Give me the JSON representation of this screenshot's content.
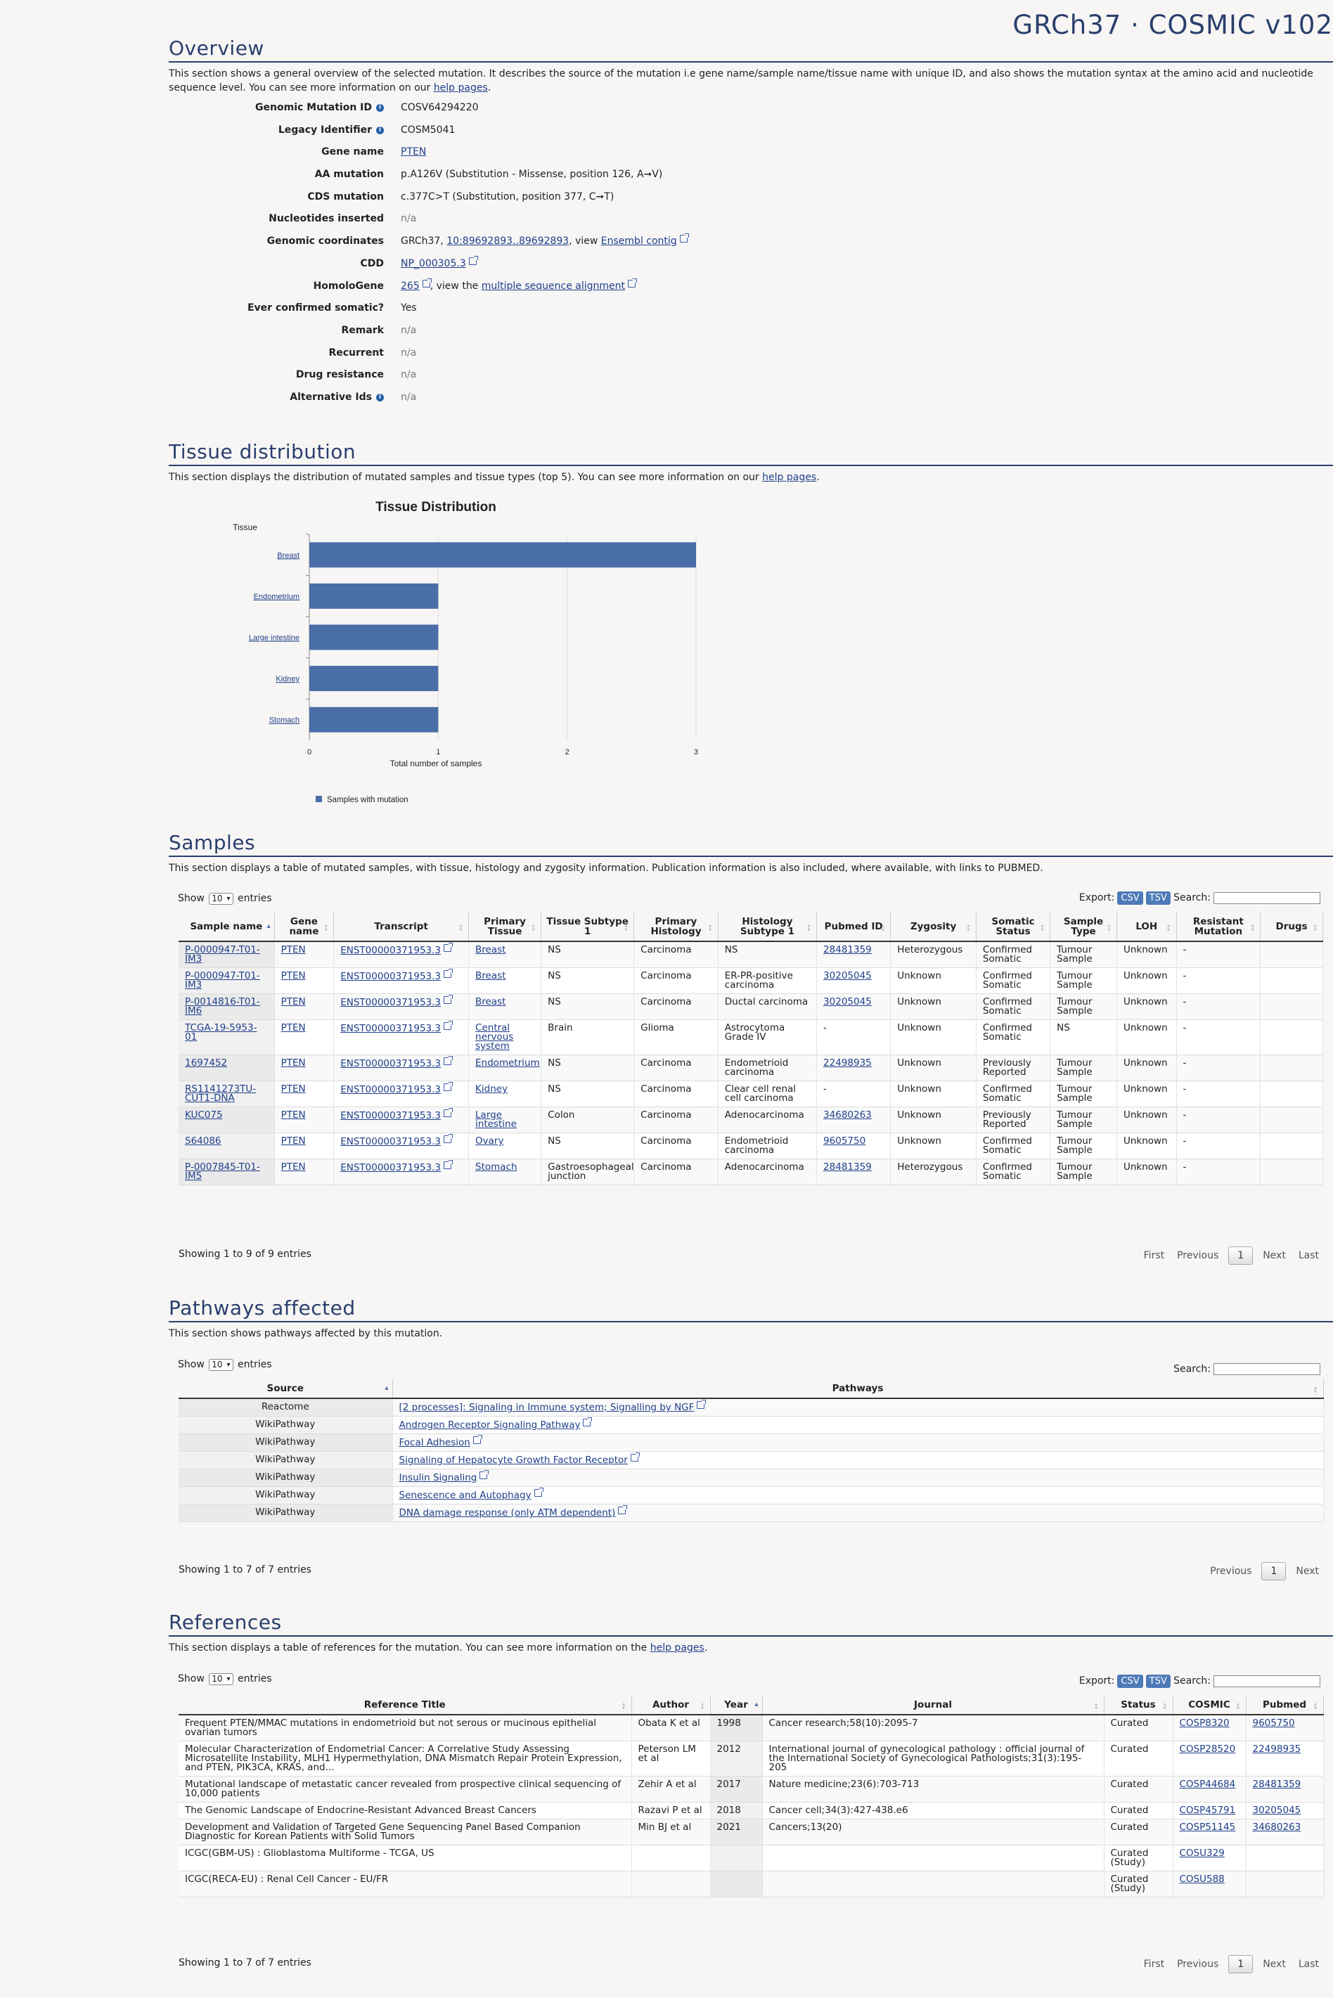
{
  "header": {
    "title": "GRCh37 · COSMIC v102"
  },
  "overview": {
    "heading": "Overview",
    "desc_a": "This section shows a general overview of the selected mutation. It describes the source of the mutation i.e gene name/sample name/tissue name with unique ID, and also shows the mutation syntax at the amino acid and nucleotide sequence level. You can see more information on our ",
    "desc_link": "help pages",
    "desc_b": ".",
    "rows": {
      "gmid": {
        "label": "Genomic Mutation ID",
        "value": "COSV64294220"
      },
      "legacy": {
        "label": "Legacy Identifier",
        "value": "COSM5041"
      },
      "gene": {
        "label": "Gene name",
        "value": "PTEN"
      },
      "aa": {
        "label": "AA mutation",
        "value": "p.A126V (Substitution - Missense, position 126, A➞V)"
      },
      "cds": {
        "label": "CDS mutation",
        "value": "c.377C>T (Substitution, position 377, C➞T)"
      },
      "nuc": {
        "label": "Nucleotides inserted",
        "value": "n/a"
      },
      "coord": {
        "label": "Genomic coordinates",
        "prefix": "GRCh37, ",
        "link": "10:89692893..89692893",
        "mid": ", view ",
        "link2": "Ensembl contig"
      },
      "cdd": {
        "label": "CDD",
        "link": "NP_000305.3"
      },
      "homolo": {
        "label": "HomoloGene",
        "link": "265",
        "mid": ", view the ",
        "link2": "multiple sequence alignment"
      },
      "ever": {
        "label": "Ever confirmed somatic?",
        "value": "Yes"
      },
      "remark": {
        "label": "Remark",
        "value": "n/a"
      },
      "recurrent": {
        "label": "Recurrent",
        "value": "n/a"
      },
      "drug": {
        "label": "Drug resistance",
        "value": "n/a"
      },
      "alt": {
        "label": "Alternative Ids",
        "value": "n/a"
      }
    }
  },
  "tissue": {
    "heading": "Tissue distribution",
    "desc_a": "This section displays the distribution of mutated samples and tissue types (top 5). You can see more information on our ",
    "desc_link": "help pages",
    "desc_b": "."
  },
  "chart_data": {
    "type": "bar",
    "orientation": "horizontal",
    "title": "Tissue Distribution",
    "ylabel": "Tissue",
    "xlabel": "Total number of samples",
    "categories": [
      "Breast",
      "Endometrium",
      "Large intestine",
      "Kidney",
      "Stomach"
    ],
    "values": [
      3,
      1,
      1,
      1,
      1
    ],
    "xlim": [
      0,
      3
    ],
    "xticks": [
      "0",
      "1",
      "2",
      "3"
    ],
    "legend": "Samples with mutation",
    "legend_position": "bottom-left",
    "color": "#4a6ea8",
    "grid": true
  },
  "samples": {
    "heading": "Samples",
    "desc": "This section displays a table of mutated samples, with tissue, histology and zygosity information. Publication information is also included, where available, with links to PUBMED.",
    "show": "Show",
    "show_val": "10",
    "entries": "entries",
    "export": "Export:",
    "csv": "CSV",
    "tsv": "TSV",
    "search": "Search:",
    "columns": [
      "Sample name",
      "Gene name",
      "Transcript",
      "Primary Tissue",
      "Tissue Subtype 1",
      "Primary Histology",
      "Histology Subtype 1",
      "Pubmed ID",
      "Zygosity",
      "Somatic Status",
      "Sample Type",
      "LOH",
      "Resistant Mutation",
      "Drugs"
    ],
    "rows": [
      [
        "P-0000947-T01-IM3",
        "PTEN",
        "ENST00000371953.3",
        "Breast",
        "NS",
        "Carcinoma",
        "NS",
        "28481359",
        "Heterozygous",
        "Confirmed Somatic",
        "Tumour Sample",
        "Unknown",
        "-",
        ""
      ],
      [
        "P-0000947-T01-IM3",
        "PTEN",
        "ENST00000371953.3",
        "Breast",
        "NS",
        "Carcinoma",
        "ER-PR-positive carcinoma",
        "30205045",
        "Unknown",
        "Confirmed Somatic",
        "Tumour Sample",
        "Unknown",
        "-",
        ""
      ],
      [
        "P-0014816-T01-IM6",
        "PTEN",
        "ENST00000371953.3",
        "Breast",
        "NS",
        "Carcinoma",
        "Ductal carcinoma",
        "30205045",
        "Unknown",
        "Confirmed Somatic",
        "Tumour Sample",
        "Unknown",
        "-",
        ""
      ],
      [
        "TCGA-19-5953-01",
        "PTEN",
        "ENST00000371953.3",
        "Central nervous system",
        "Brain",
        "Glioma",
        "Astrocytoma Grade IV",
        "-",
        "Unknown",
        "Confirmed Somatic",
        "NS",
        "Unknown",
        "-",
        ""
      ],
      [
        "1697452",
        "PTEN",
        "ENST00000371953.3",
        "Endometrium",
        "NS",
        "Carcinoma",
        "Endometrioid carcinoma",
        "22498935",
        "Unknown",
        "Previously Reported",
        "Tumour Sample",
        "Unknown",
        "-",
        ""
      ],
      [
        "RS1141273TU-CUT1-DNA",
        "PTEN",
        "ENST00000371953.3",
        "Kidney",
        "NS",
        "Carcinoma",
        "Clear cell renal cell carcinoma",
        "-",
        "Unknown",
        "Confirmed Somatic",
        "Tumour Sample",
        "Unknown",
        "-",
        ""
      ],
      [
        "KUC075",
        "PTEN",
        "ENST00000371953.3",
        "Large intestine",
        "Colon",
        "Carcinoma",
        "Adenocarcinoma",
        "34680263",
        "Unknown",
        "Previously Reported",
        "Tumour Sample",
        "Unknown",
        "-",
        ""
      ],
      [
        "S64086",
        "PTEN",
        "ENST00000371953.3",
        "Ovary",
        "NS",
        "Carcinoma",
        "Endometrioid carcinoma",
        "9605750",
        "Unknown",
        "Confirmed Somatic",
        "Tumour Sample",
        "Unknown",
        "-",
        ""
      ],
      [
        "P-0007845-T01-IM5",
        "PTEN",
        "ENST00000371953.3",
        "Stomach",
        "Gastroesophageal junction",
        "Carcinoma",
        "Adenocarcinoma",
        "28481359",
        "Heterozygous",
        "Confirmed Somatic",
        "Tumour Sample",
        "Unknown",
        "-",
        ""
      ]
    ],
    "info": "Showing 1 to 9 of 9 entries",
    "pager": {
      "first": "First",
      "prev": "Previous",
      "page": "1",
      "next": "Next",
      "last": "Last"
    }
  },
  "pathways": {
    "heading": "Pathways affected",
    "desc": "This section shows pathways affected by this mutation.",
    "show": "Show",
    "show_val": "10",
    "entries": "entries",
    "search": "Search:",
    "columns": [
      "Source",
      "Pathways"
    ],
    "rows": [
      [
        "Reactome",
        "[2 processes]: Signaling in Immune system; Signalling by NGF"
      ],
      [
        "WikiPathway",
        "Androgen Receptor Signaling Pathway"
      ],
      [
        "WikiPathway",
        "Focal Adhesion"
      ],
      [
        "WikiPathway",
        "Signaling of Hepatocyte Growth Factor Receptor"
      ],
      [
        "WikiPathway",
        "Insulin Signaling"
      ],
      [
        "WikiPathway",
        "Senescence and Autophagy"
      ],
      [
        "WikiPathway",
        "DNA damage response (only ATM dependent)"
      ]
    ],
    "info": "Showing 1 to 7 of 7 entries",
    "pager": {
      "prev": "Previous",
      "page": "1",
      "next": "Next"
    }
  },
  "references": {
    "heading": "References",
    "desc_a": "This section displays a table of references for the mutation. You can see more information on the ",
    "desc_link": "help pages",
    "desc_b": ".",
    "show": "Show",
    "show_val": "10",
    "entries": "entries",
    "export": "Export:",
    "csv": "CSV",
    "tsv": "TSV",
    "search": "Search:",
    "columns": [
      "Reference Title",
      "Author",
      "Year",
      "Journal",
      "Status",
      "COSMIC",
      "Pubmed"
    ],
    "rows": [
      [
        "Frequent PTEN/MMAC mutations in endometrioid but not serous or mucinous epithelial ovarian tumors",
        "Obata K et al",
        "1998",
        "Cancer research;58(10):2095-7",
        "Curated",
        "COSP8320",
        "9605750"
      ],
      [
        "Molecular Characterization of Endometrial Cancer: A Correlative Study Assessing Microsatellite Instability, MLH1 Hypermethylation, DNA Mismatch Repair Protein Expression, and PTEN, PIK3CA, KRAS, and...",
        "Peterson LM et al",
        "2012",
        "International journal of gynecological pathology : official journal of the International Society of Gynecological Pathologists;31(3):195-205",
        "Curated",
        "COSP28520",
        "22498935"
      ],
      [
        "Mutational landscape of metastatic cancer revealed from prospective clinical sequencing of 10,000 patients",
        "Zehir A et al",
        "2017",
        "Nature medicine;23(6):703-713",
        "Curated",
        "COSP44684",
        "28481359"
      ],
      [
        "The Genomic Landscape of Endocrine-Resistant Advanced Breast Cancers",
        "Razavi P et al",
        "2018",
        "Cancer cell;34(3):427-438.e6",
        "Curated",
        "COSP45791",
        "30205045"
      ],
      [
        "Development and Validation of Targeted Gene Sequencing Panel Based Companion Diagnostic for Korean Patients with Solid Tumors",
        "Min BJ et al",
        "2021",
        "Cancers;13(20)",
        "Curated",
        "COSP51145",
        "34680263"
      ],
      [
        "ICGC(GBM-US) : Glioblastoma Multiforme - TCGA, US",
        "",
        "",
        "",
        "Curated (Study)",
        "COSU329",
        ""
      ],
      [
        "ICGC(RECA-EU) : Renal Cell Cancer - EU/FR",
        "",
        "",
        "",
        "Curated (Study)",
        "COSU588",
        ""
      ]
    ],
    "info": "Showing 1 to 7 of 7 entries",
    "pager": {
      "first": "First",
      "prev": "Previous",
      "page": "1",
      "next": "Next",
      "last": "Last"
    }
  }
}
